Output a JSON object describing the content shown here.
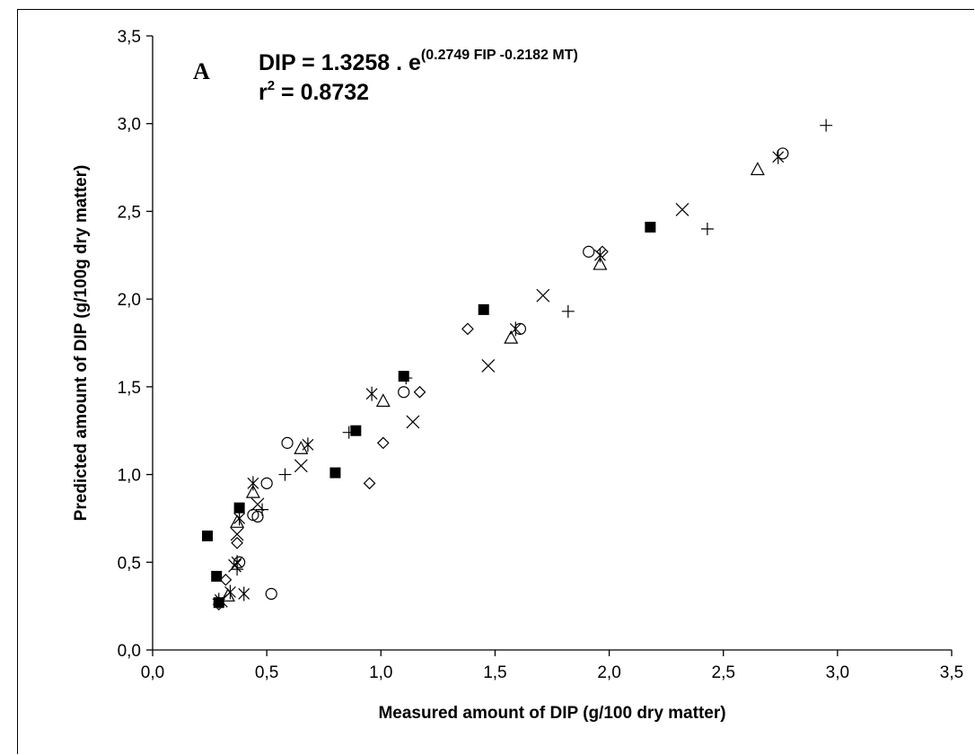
{
  "chart_data": {
    "type": "scatter",
    "panel_label": "A",
    "equation": {
      "prefix": "DIP = 1.3258 . e",
      "exponent": "(0.2749 FIP -0.2182 MT)",
      "r2_prefix": "r",
      "r2_sup": "2",
      "r2_value": " = 0.8732"
    },
    "xlabel": "Measured amount of DIP (g/100 dry matter)",
    "ylabel": "Predicted amount of DIP (g/100g dry matter)",
    "xlim": [
      0,
      3.5
    ],
    "ylim": [
      0,
      3.5
    ],
    "x_ticks": [
      "0,0",
      "0,5",
      "1,0",
      "1,5",
      "2,0",
      "2,5",
      "3,0",
      "3,5"
    ],
    "y_ticks": [
      "0,0",
      "0,5",
      "1,0",
      "1,5",
      "2,0",
      "2,5",
      "3,0",
      "3,5"
    ],
    "grid": false,
    "series": [
      {
        "marker": "filled-square",
        "points": [
          [
            0.24,
            0.65
          ],
          [
            0.28,
            0.42
          ],
          [
            0.29,
            0.27
          ],
          [
            0.38,
            0.81
          ],
          [
            0.8,
            1.01
          ],
          [
            0.89,
            1.25
          ],
          [
            1.1,
            1.56
          ],
          [
            1.45,
            1.94
          ],
          [
            2.18,
            2.41
          ]
        ]
      },
      {
        "marker": "circle",
        "points": [
          [
            0.38,
            0.5
          ],
          [
            0.44,
            0.77
          ],
          [
            0.46,
            0.76
          ],
          [
            0.5,
            0.95
          ],
          [
            0.52,
            0.32
          ],
          [
            0.59,
            1.18
          ],
          [
            1.1,
            1.47
          ],
          [
            1.61,
            1.83
          ],
          [
            1.91,
            2.27
          ],
          [
            2.76,
            2.83
          ]
        ]
      },
      {
        "marker": "triangle",
        "points": [
          [
            0.33,
            0.31
          ],
          [
            0.37,
            0.73
          ],
          [
            0.44,
            0.9
          ],
          [
            0.65,
            1.15
          ],
          [
            1.01,
            1.42
          ],
          [
            1.57,
            1.78
          ],
          [
            1.96,
            2.2
          ],
          [
            2.65,
            2.74
          ]
        ]
      },
      {
        "marker": "diamond",
        "points": [
          [
            0.29,
            0.26
          ],
          [
            0.32,
            0.4
          ],
          [
            0.37,
            0.61
          ],
          [
            0.95,
            0.95
          ],
          [
            1.01,
            1.18
          ],
          [
            1.17,
            1.47
          ],
          [
            1.38,
            1.83
          ],
          [
            1.97,
            2.27
          ]
        ]
      },
      {
        "marker": "x",
        "points": [
          [
            0.3,
            0.28
          ],
          [
            0.36,
            0.48
          ],
          [
            0.37,
            0.66
          ],
          [
            0.46,
            0.83
          ],
          [
            0.65,
            1.05
          ],
          [
            1.14,
            1.3
          ],
          [
            1.47,
            1.62
          ],
          [
            1.71,
            2.02
          ],
          [
            2.32,
            2.51
          ]
        ]
      },
      {
        "marker": "asterisk",
        "points": [
          [
            0.34,
            0.33
          ],
          [
            0.37,
            0.5
          ],
          [
            0.38,
            0.75
          ],
          [
            0.4,
            0.32
          ],
          [
            0.44,
            0.95
          ],
          [
            0.68,
            1.17
          ],
          [
            0.96,
            1.46
          ],
          [
            1.59,
            1.83
          ],
          [
            1.96,
            2.25
          ],
          [
            2.74,
            2.81
          ]
        ]
      },
      {
        "marker": "plus",
        "points": [
          [
            0.29,
            0.29
          ],
          [
            0.37,
            0.46
          ],
          [
            0.48,
            0.8
          ],
          [
            0.58,
            1.0
          ],
          [
            0.86,
            1.24
          ],
          [
            1.11,
            1.55
          ],
          [
            1.82,
            1.93
          ],
          [
            2.43,
            2.4
          ],
          [
            2.95,
            2.99
          ]
        ]
      }
    ]
  }
}
